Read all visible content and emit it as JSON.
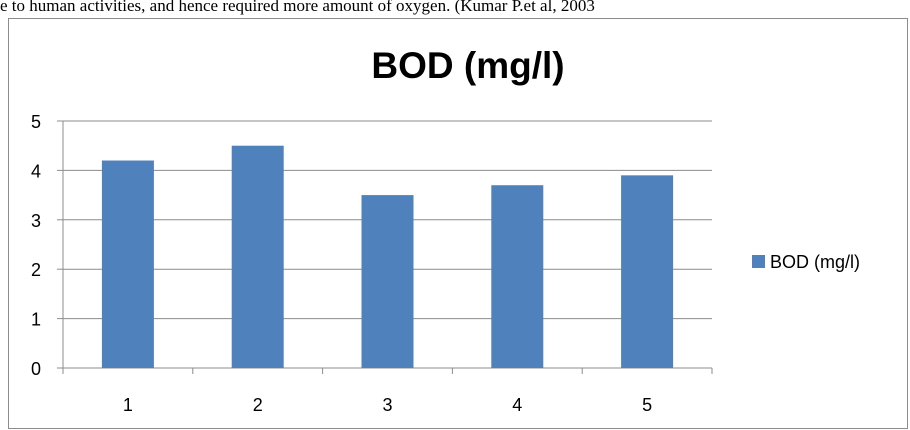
{
  "page_text": "e to human activities, and hence required more amount of oxygen. (Kumar P.et al, 2003",
  "chart_data": {
    "type": "bar",
    "title": "BOD (mg/l)",
    "categories": [
      "1",
      "2",
      "3",
      "4",
      "5"
    ],
    "series": [
      {
        "name": "BOD (mg/l)",
        "values": [
          4.2,
          4.5,
          3.5,
          3.7,
          3.9
        ],
        "color": "#4f81bd"
      }
    ],
    "y_ticks": [
      "0",
      "1",
      "2",
      "3",
      "4",
      "5"
    ],
    "ylim": [
      0,
      5
    ],
    "grid": true,
    "legend_position": "right"
  }
}
